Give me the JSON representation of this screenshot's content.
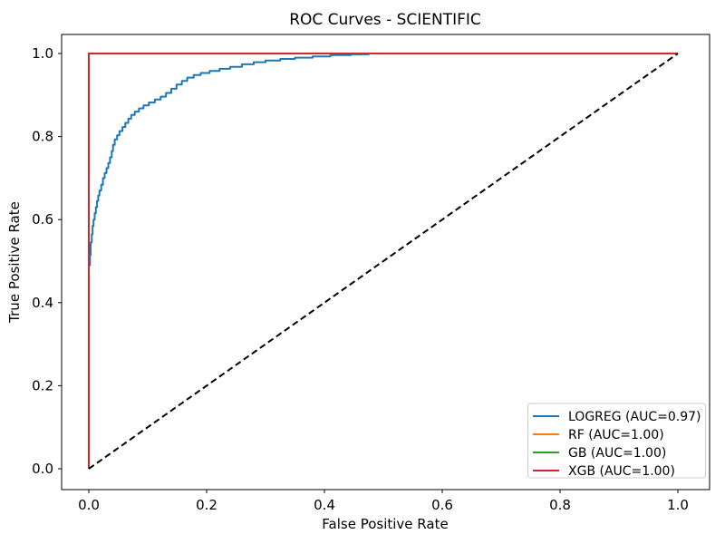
{
  "chart_data": {
    "type": "line",
    "title": "ROC Curves - SCIENTIFIC",
    "xlabel": "False Positive Rate",
    "ylabel": "True Positive Rate",
    "xlim": [
      -0.05,
      1.05
    ],
    "ylim": [
      -0.05,
      1.05
    ],
    "grid": false,
    "legend_position": "lower right",
    "xticks": [
      "0.0",
      "0.2",
      "0.4",
      "0.6",
      "0.8",
      "1.0"
    ],
    "yticks": [
      "0.0",
      "0.2",
      "0.4",
      "0.6",
      "0.8",
      "1.0"
    ],
    "series": [
      {
        "name": "LOGREG (AUC=0.97)",
        "auc": 0.97,
        "color": "#1f77b4",
        "style": "solid",
        "points": [
          [
            0,
            0
          ],
          [
            0,
            0.49
          ],
          [
            0.002,
            0.49
          ],
          [
            0.002,
            0.515
          ],
          [
            0.003,
            0.515
          ],
          [
            0.003,
            0.545
          ],
          [
            0.005,
            0.545
          ],
          [
            0.005,
            0.565
          ],
          [
            0.0065,
            0.565
          ],
          [
            0.0065,
            0.585
          ],
          [
            0.008,
            0.585
          ],
          [
            0.008,
            0.6
          ],
          [
            0.01,
            0.6
          ],
          [
            0.01,
            0.615
          ],
          [
            0.012,
            0.615
          ],
          [
            0.012,
            0.63
          ],
          [
            0.014,
            0.63
          ],
          [
            0.014,
            0.645
          ],
          [
            0.016,
            0.645
          ],
          [
            0.016,
            0.658
          ],
          [
            0.018,
            0.658
          ],
          [
            0.018,
            0.67
          ],
          [
            0.021,
            0.67
          ],
          [
            0.021,
            0.684
          ],
          [
            0.024,
            0.684
          ],
          [
            0.024,
            0.7
          ],
          [
            0.027,
            0.7
          ],
          [
            0.027,
            0.712
          ],
          [
            0.03,
            0.712
          ],
          [
            0.03,
            0.724
          ],
          [
            0.033,
            0.724
          ],
          [
            0.033,
            0.736
          ],
          [
            0.036,
            0.736
          ],
          [
            0.036,
            0.75
          ],
          [
            0.039,
            0.75
          ],
          [
            0.039,
            0.765
          ],
          [
            0.041,
            0.765
          ],
          [
            0.041,
            0.78
          ],
          [
            0.044,
            0.78
          ],
          [
            0.044,
            0.793
          ],
          [
            0.048,
            0.793
          ],
          [
            0.048,
            0.803
          ],
          [
            0.052,
            0.803
          ],
          [
            0.052,
            0.813
          ],
          [
            0.057,
            0.813
          ],
          [
            0.057,
            0.823
          ],
          [
            0.062,
            0.823
          ],
          [
            0.062,
            0.833
          ],
          [
            0.067,
            0.833
          ],
          [
            0.067,
            0.843
          ],
          [
            0.072,
            0.843
          ],
          [
            0.072,
            0.852
          ],
          [
            0.078,
            0.852
          ],
          [
            0.078,
            0.86
          ],
          [
            0.085,
            0.86
          ],
          [
            0.085,
            0.868
          ],
          [
            0.093,
            0.868
          ],
          [
            0.093,
            0.875
          ],
          [
            0.102,
            0.875
          ],
          [
            0.102,
            0.882
          ],
          [
            0.112,
            0.882
          ],
          [
            0.112,
            0.889
          ],
          [
            0.122,
            0.889
          ],
          [
            0.122,
            0.896
          ],
          [
            0.131,
            0.896
          ],
          [
            0.131,
            0.905
          ],
          [
            0.14,
            0.905
          ],
          [
            0.14,
            0.915
          ],
          [
            0.149,
            0.915
          ],
          [
            0.149,
            0.925
          ],
          [
            0.158,
            0.925
          ],
          [
            0.158,
            0.934
          ],
          [
            0.167,
            0.934
          ],
          [
            0.167,
            0.942
          ],
          [
            0.178,
            0.942
          ],
          [
            0.178,
            0.948
          ],
          [
            0.19,
            0.948
          ],
          [
            0.19,
            0.953
          ],
          [
            0.205,
            0.953
          ],
          [
            0.205,
            0.958
          ],
          [
            0.222,
            0.958
          ],
          [
            0.222,
            0.963
          ],
          [
            0.24,
            0.963
          ],
          [
            0.24,
            0.968
          ],
          [
            0.26,
            0.968
          ],
          [
            0.26,
            0.974
          ],
          [
            0.28,
            0.974
          ],
          [
            0.28,
            0.979
          ],
          [
            0.3,
            0.979
          ],
          [
            0.3,
            0.983
          ],
          [
            0.325,
            0.983
          ],
          [
            0.325,
            0.987
          ],
          [
            0.35,
            0.987
          ],
          [
            0.35,
            0.99
          ],
          [
            0.38,
            0.99
          ],
          [
            0.38,
            0.993
          ],
          [
            0.41,
            0.993
          ],
          [
            0.41,
            0.996
          ],
          [
            0.445,
            0.996
          ],
          [
            0.445,
            0.998
          ],
          [
            0.475,
            0.998
          ],
          [
            0.475,
            1
          ],
          [
            1,
            1
          ]
        ]
      },
      {
        "name": "RF (AUC=1.00)",
        "auc": 1.0,
        "color": "#ff7f0e",
        "style": "solid",
        "points": [
          [
            0,
            0
          ],
          [
            0,
            1
          ],
          [
            1,
            1
          ]
        ]
      },
      {
        "name": "GB (AUC=1.00)",
        "auc": 1.0,
        "color": "#2ca02c",
        "style": "solid",
        "points": [
          [
            0,
            0
          ],
          [
            0,
            1
          ],
          [
            1,
            1
          ]
        ]
      },
      {
        "name": "XGB (AUC=1.00)",
        "auc": 1.0,
        "color": "#d62728",
        "style": "solid",
        "points": [
          [
            0,
            0
          ],
          [
            0,
            1
          ],
          [
            1,
            1
          ]
        ]
      }
    ],
    "chance_line": {
      "name": "chance-diagonal",
      "color": "#000000",
      "style": "dashed",
      "points": [
        [
          0,
          0
        ],
        [
          1,
          1
        ]
      ]
    }
  }
}
